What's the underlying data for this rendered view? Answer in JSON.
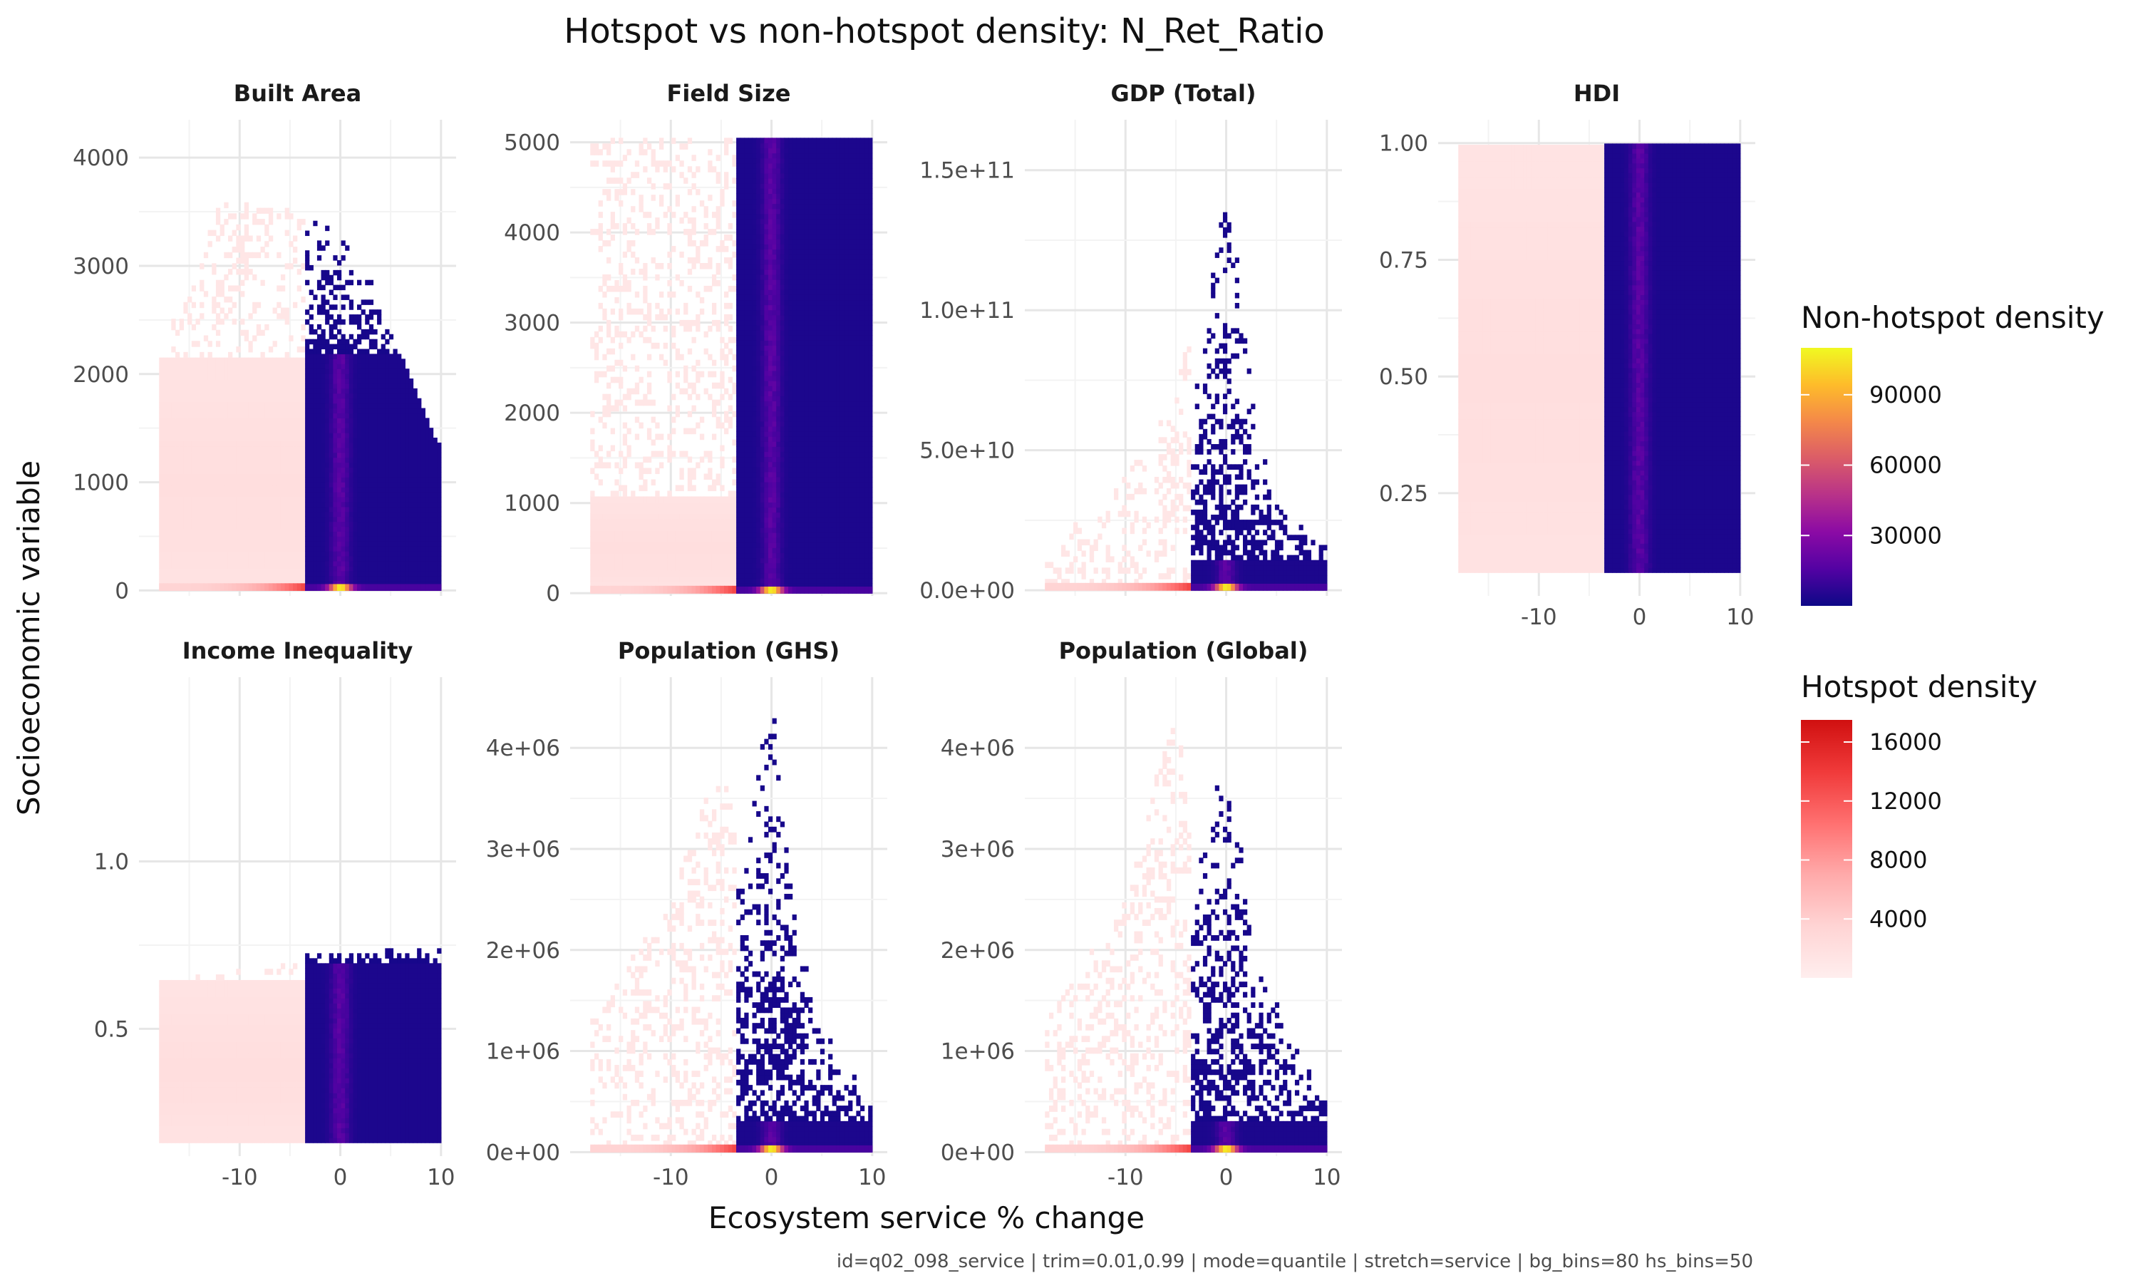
{
  "chart_data": {
    "type": "heatmap",
    "title": "Hotspot vs non-hotspot density: N_Ret_Ratio",
    "xlabel": "Ecosystem service % change",
    "ylabel": "Socioeconomic variable",
    "caption": "id=q02_098_service | trim=0.01,0.99 | mode=quantile | stretch=service | bg_bins=80 hs_bins=50",
    "xlim": [
      -18,
      10
    ],
    "x_ticks": [
      {
        "value": -10,
        "label": "-10"
      },
      {
        "value": 0,
        "label": "0"
      },
      {
        "value": 10,
        "label": "10"
      }
    ],
    "hotspot_threshold_x": -3.5,
    "grid": true,
    "legend_position": "right",
    "panels": [
      {
        "name": "Built Area",
        "ylim": [
          -50,
          4350
        ],
        "ymin": 0,
        "ymax": 4100,
        "ybase": 30,
        "yticks": [
          {
            "value": 0,
            "label": "0"
          },
          {
            "value": 1000,
            "label": "1000"
          },
          {
            "value": 2000,
            "label": "2000"
          },
          {
            "value": 3000,
            "label": "3000"
          },
          {
            "value": 4000,
            "label": "4000"
          }
        ],
        "hs_fill_top": 2200,
        "hs_env": [
          [
            -3.5,
            3450
          ],
          [
            0,
            3300
          ],
          [
            3,
            2900
          ],
          [
            6,
            2200
          ],
          [
            10,
            1300
          ]
        ],
        "bg_fill_top": 2150,
        "bg_env": [
          [
            -18,
            2200
          ],
          [
            -12,
            3600
          ],
          [
            -6,
            3600
          ],
          [
            -3.5,
            3400
          ]
        ],
        "hot_x": 0
      },
      {
        "name": "Field Size",
        "ylim": [
          -30,
          5250
        ],
        "ymin": 0,
        "ymax": 5050,
        "ybase": 20,
        "yticks": [
          {
            "value": 0,
            "label": "0"
          },
          {
            "value": 1000,
            "label": "1000"
          },
          {
            "value": 2000,
            "label": "2000"
          },
          {
            "value": 3000,
            "label": "3000"
          },
          {
            "value": 4000,
            "label": "4000"
          },
          {
            "value": 5000,
            "label": "5000"
          }
        ],
        "hs_fill_top": 5050,
        "hs_env": [
          [
            -3.5,
            5050
          ],
          [
            10,
            5050
          ]
        ],
        "bg_fill_top": 1100,
        "bg_env": [
          [
            -18,
            5050
          ],
          [
            -3.5,
            5050
          ]
        ],
        "hot_x": 0
      },
      {
        "name": "GDP (Total)",
        "ylim": [
          -2000000000.0,
          168000000000.0
        ],
        "ymin": 0,
        "ymax": 162000000000.0,
        "ybase": 1000000000.0,
        "yticks": [
          {
            "value": 0,
            "label": "0.0e+00"
          },
          {
            "value": 50000000000.0,
            "label": "5.0e+10"
          },
          {
            "value": 100000000000.0,
            "label": "1.0e+11"
          },
          {
            "value": 150000000000.0,
            "label": "1.5e+11"
          }
        ],
        "hs_fill_top": 10000000000.0,
        "hs_env": [
          [
            -3.5,
            60000000000.0
          ],
          [
            0,
            150000000000.0
          ],
          [
            3,
            60000000000.0
          ],
          [
            6,
            30000000000.0
          ],
          [
            10,
            15000000000.0
          ]
        ],
        "bg_fill_top": 2500000000.0,
        "bg_env": [
          [
            -18,
            15000000000.0
          ],
          [
            -10,
            40000000000.0
          ],
          [
            -5,
            70000000000.0
          ],
          [
            -3.5,
            100000000000.0
          ]
        ],
        "hot_x": 0
      },
      {
        "name": "HDI",
        "ylim": [
          0.03,
          1.05
        ],
        "ymin": 0.08,
        "ymax": 1.02,
        "ybase": null,
        "yticks": [
          {
            "value": 0.25,
            "label": "0.25"
          },
          {
            "value": 0.5,
            "label": "0.50"
          },
          {
            "value": 0.75,
            "label": "0.75"
          },
          {
            "value": 1.0,
            "label": "1.00"
          }
        ],
        "hs_fill_top": 1.0,
        "hs_env": [
          [
            -3.5,
            1.0
          ],
          [
            10,
            1.0
          ]
        ],
        "bg_fill_top": 1.0,
        "bg_env": [
          [
            -18,
            1.0
          ],
          [
            -3.5,
            1.0
          ]
        ],
        "hot_x": 0
      },
      {
        "name": "Income Inequality",
        "ylim": [
          0.12,
          1.55
        ],
        "ymin": 0.16,
        "ymax": 1.5,
        "ybase": null,
        "yticks": [
          {
            "value": 0.5,
            "label": "0.5"
          },
          {
            "value": 1.0,
            "label": "1.0"
          }
        ],
        "hs_fill_top": 0.7,
        "hs_env": [
          [
            -3.5,
            0.74
          ],
          [
            10,
            0.74
          ]
        ],
        "bg_fill_top": 0.64,
        "bg_env": [
          [
            -18,
            0.64
          ],
          [
            -3.5,
            0.7
          ]
        ],
        "hot_x": 0
      },
      {
        "name": "Population (GHS)",
        "ylim": [
          -40000.0,
          4700000.0
        ],
        "ymin": 0,
        "ymax": 4600000.0,
        "ybase": 20000.0,
        "yticks": [
          {
            "value": 0,
            "label": "0e+00"
          },
          {
            "value": 1000000.0,
            "label": "1e+06"
          },
          {
            "value": 2000000.0,
            "label": "2e+06"
          },
          {
            "value": 3000000.0,
            "label": "3e+06"
          },
          {
            "value": 4000000.0,
            "label": "4e+06"
          }
        ],
        "hs_fill_top": 300000.0,
        "hs_env": [
          [
            -3.5,
            2500000.0
          ],
          [
            0,
            4600000.0
          ],
          [
            3,
            2000000.0
          ],
          [
            6,
            1200000.0
          ],
          [
            10,
            500000.0
          ]
        ],
        "bg_fill_top": 80000.0,
        "bg_env": [
          [
            -18,
            1300000.0
          ],
          [
            -10,
            2500000.0
          ],
          [
            -5,
            4000000.0
          ],
          [
            -3.5,
            3200000.0
          ]
        ],
        "hot_x": 0
      },
      {
        "name": "Population (Global)",
        "ylim": [
          -40000.0,
          4700000.0
        ],
        "ymin": 0,
        "ymax": 4600000.0,
        "ybase": 20000.0,
        "yticks": [
          {
            "value": 0,
            "label": "0e+00"
          },
          {
            "value": 1000000.0,
            "label": "1e+06"
          },
          {
            "value": 2000000.0,
            "label": "2e+06"
          },
          {
            "value": 3000000.0,
            "label": "3e+06"
          },
          {
            "value": 4000000.0,
            "label": "4e+06"
          }
        ],
        "hs_fill_top": 300000.0,
        "hs_env": [
          [
            -3.5,
            2500000.0
          ],
          [
            0,
            4000000.0
          ],
          [
            3,
            2000000.0
          ],
          [
            6,
            1200000.0
          ],
          [
            10,
            500000.0
          ]
        ],
        "bg_fill_top": 80000.0,
        "bg_env": [
          [
            -18,
            1300000.0
          ],
          [
            -10,
            2500000.0
          ],
          [
            -5,
            4500000.0
          ],
          [
            -3.5,
            3000000.0
          ]
        ],
        "hot_x": 0
      }
    ],
    "legends": [
      {
        "title": "Non-hotspot density",
        "scale": "plasma",
        "range": [
          0,
          110000
        ],
        "ticks": [
          {
            "value": 30000,
            "label": "30000"
          },
          {
            "value": 60000,
            "label": "60000"
          },
          {
            "value": 90000,
            "label": "90000"
          }
        ],
        "colors": [
          "#0d0887",
          "#5302a3",
          "#8b0aa5",
          "#b83289",
          "#db5c68",
          "#f48849",
          "#febc2a",
          "#f0f921"
        ]
      },
      {
        "title": "Hotspot density",
        "scale": "reds",
        "range": [
          0,
          17500
        ],
        "ticks": [
          {
            "value": 4000,
            "label": "4000"
          },
          {
            "value": 8000,
            "label": "8000"
          },
          {
            "value": 12000,
            "label": "12000"
          },
          {
            "value": 16000,
            "label": "16000"
          }
        ],
        "colors": [
          "#ffeeee",
          "#ffd4d4",
          "#ffaaaa",
          "#ff7070",
          "#f03a3a",
          "#d01010"
        ]
      }
    ]
  }
}
